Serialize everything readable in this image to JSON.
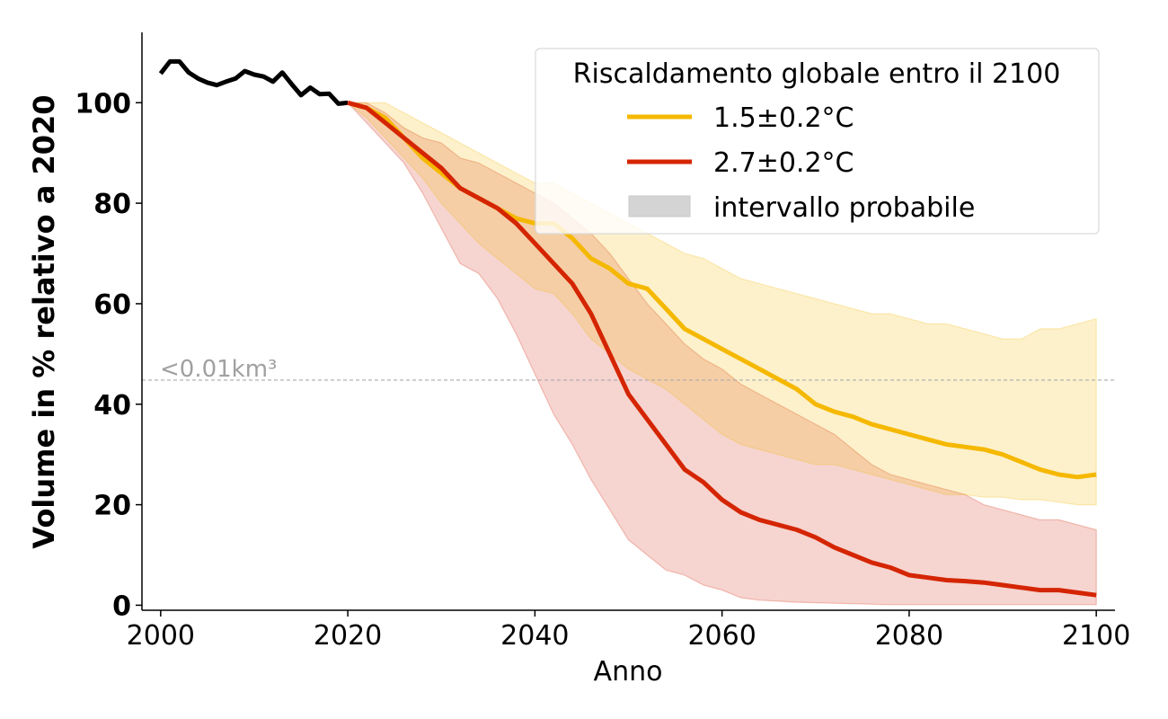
{
  "chart_data": {
    "type": "line",
    "xlabel": "Anno",
    "ylabel": "Volume in % relativo a 2020",
    "xlim": [
      1998,
      2102
    ],
    "ylim": [
      -1,
      114
    ],
    "xticks": [
      2000,
      2020,
      2040,
      2060,
      2080,
      2100
    ],
    "yticks": [
      0,
      20,
      40,
      60,
      80,
      100
    ],
    "grid": false,
    "legend": {
      "title": "Riscaldamento globale entro il 2100",
      "placement": "top-right",
      "entries": [
        "1.5±0.2°C",
        "2.7±0.2°C",
        "intervallo probabile"
      ]
    },
    "threshold": {
      "y": 44.8,
      "label": "<0.01km³"
    },
    "colors": {
      "historical": "#000000",
      "low": "#F5B800",
      "high": "#D42500",
      "low_band": "#FEEFC6",
      "high_band": "#F4CDC8",
      "overlap_band": "#F1C2A0",
      "legend_band": "#D4D4D4",
      "threshold": "#AAAAAA",
      "threshold_label": "#A0A0A0"
    },
    "historical": {
      "x": [
        2000,
        2001,
        2002,
        2003,
        2004,
        2005,
        2006,
        2007,
        2008,
        2009,
        2010,
        2011,
        2012,
        2013,
        2014,
        2015,
        2016,
        2017,
        2018,
        2019,
        2020
      ],
      "y": [
        105.8,
        108.2,
        108.2,
        106.0,
        104.8,
        104.0,
        103.5,
        104.2,
        104.8,
        106.3,
        105.6,
        105.2,
        104.2,
        106.0,
        103.7,
        101.5,
        103.0,
        101.7,
        101.8,
        99.8,
        100.0
      ]
    },
    "series": [
      {
        "name": "1.5±0.2°C",
        "x": [
          2020,
          2022,
          2024,
          2026,
          2028,
          2030,
          2032,
          2034,
          2036,
          2038,
          2040,
          2042,
          2044,
          2046,
          2048,
          2050,
          2052,
          2054,
          2056,
          2058,
          2060,
          2062,
          2064,
          2066,
          2068,
          2070,
          2072,
          2074,
          2076,
          2078,
          2080,
          2082,
          2084,
          2086,
          2088,
          2090,
          2092,
          2094,
          2096,
          2098,
          2100
        ],
        "y": [
          100,
          99,
          97,
          93,
          89,
          86,
          83,
          81,
          79,
          77,
          76,
          76,
          73,
          69,
          67,
          64,
          63,
          59,
          55,
          53,
          51,
          49,
          47,
          45,
          43,
          40,
          38.5,
          37.5,
          36,
          35,
          34,
          33,
          32,
          31.5,
          31,
          30,
          28.5,
          27,
          26,
          25.5,
          26
        ],
        "upper": [
          100,
          100,
          100,
          98,
          96,
          94,
          92,
          90,
          88,
          86,
          84,
          84,
          82,
          80,
          78,
          76,
          74,
          72,
          70,
          69,
          67,
          65,
          64,
          63,
          62,
          61,
          60,
          59,
          58,
          58,
          57,
          56,
          56,
          55,
          54,
          53,
          53,
          55,
          55,
          56,
          57
        ],
        "lower": [
          100,
          97,
          93,
          89,
          85,
          80,
          76,
          72,
          69,
          66,
          63,
          62,
          58,
          53,
          50,
          47,
          45,
          43,
          40,
          37,
          34,
          32,
          31,
          30,
          29,
          28,
          28,
          27,
          26,
          25,
          24,
          23,
          22,
          22,
          21.5,
          21.5,
          21,
          21,
          20.5,
          20,
          20
        ]
      },
      {
        "name": "2.7±0.2°C",
        "x": [
          2020,
          2022,
          2024,
          2026,
          2028,
          2030,
          2032,
          2034,
          2036,
          2038,
          2040,
          2042,
          2044,
          2046,
          2048,
          2050,
          2052,
          2054,
          2056,
          2058,
          2060,
          2062,
          2064,
          2066,
          2068,
          2070,
          2072,
          2074,
          2076,
          2078,
          2080,
          2082,
          2084,
          2086,
          2088,
          2090,
          2092,
          2094,
          2096,
          2098,
          2100
        ],
        "y": [
          100,
          99,
          96,
          93,
          90,
          87,
          83,
          81,
          79,
          76,
          72,
          68,
          64,
          58,
          50,
          42,
          37,
          32,
          27,
          24.5,
          21,
          18.5,
          17,
          16,
          15,
          13.5,
          11.5,
          10,
          8.5,
          7.5,
          6,
          5.5,
          5,
          4.8,
          4.5,
          4,
          3.5,
          3,
          3,
          2.5,
          2
        ],
        "upper": [
          100,
          100,
          98,
          95,
          93,
          92,
          89,
          88,
          86,
          84,
          82,
          80,
          77,
          74,
          70,
          65,
          60,
          56,
          52,
          49,
          47,
          44,
          42,
          40,
          38,
          36,
          34,
          31,
          28,
          26,
          25,
          24,
          23,
          22,
          20,
          19,
          18,
          17,
          17,
          16,
          15
        ],
        "lower": [
          100,
          96,
          92,
          88,
          82,
          75,
          68,
          66,
          61,
          54,
          46,
          38,
          32,
          25,
          19,
          13,
          10,
          7,
          6,
          4,
          3,
          1.5,
          1,
          0.8,
          0.6,
          0.5,
          0.4,
          0.3,
          0.2,
          0.1,
          0.1,
          0.1,
          0.1,
          0.1,
          0.1,
          0.1,
          0.1,
          0.1,
          0.1,
          0.1,
          0.1
        ]
      }
    ]
  }
}
